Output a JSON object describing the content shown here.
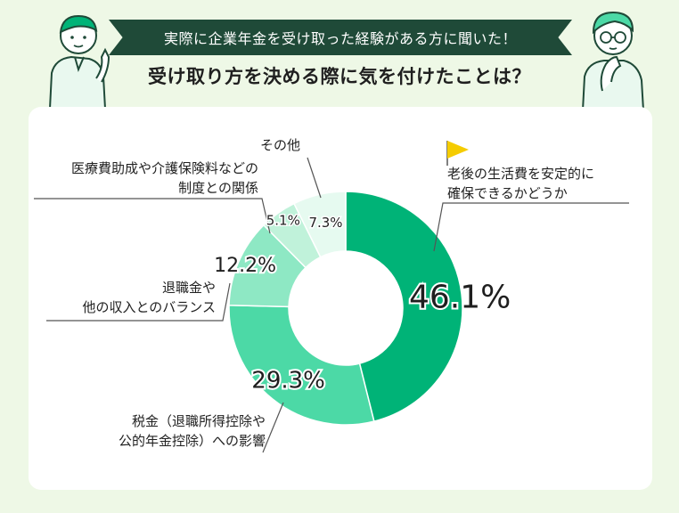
{
  "header": {
    "banner": "実際に企業年金を受け取った経験がある方に聞いた！",
    "question": "受け取り方を決める際に気を付けたことは？"
  },
  "colors": {
    "banner_bg": "#1f4a38",
    "seg1": "#00b377",
    "seg2": "#4cd9a6",
    "seg3": "#8ee8c4",
    "seg4": "#c0f2da",
    "seg5": "#e6faf0",
    "flag": "#f5cc00",
    "background": "#eef8e6"
  },
  "chart_data": {
    "type": "pie",
    "donut": true,
    "categories": [
      "老後の生活費を安定的に確保できるかどうか",
      "税金（退職所得控除や公的年金控除）への影響",
      "退職金や他の収入とのバランス",
      "医療費助成や介護保険料などの制度との関係",
      "その他"
    ],
    "values": [
      46.1,
      29.3,
      12.2,
      5.1,
      7.3
    ],
    "value_labels": [
      "46.1%",
      "29.3%",
      "12.2%",
      "5.1%",
      "7.3%"
    ],
    "category_lines": [
      [
        "老後の生活費を安定的に",
        "確保できるかどうか"
      ],
      [
        "税金（退職所得控除や",
        "公的年金控除）への影響"
      ],
      [
        "退職金や",
        "他の収入とのバランス"
      ],
      [
        "医療費助成や介護保険料などの",
        "制度との関係"
      ],
      [
        "その他"
      ]
    ],
    "legend": "none"
  }
}
